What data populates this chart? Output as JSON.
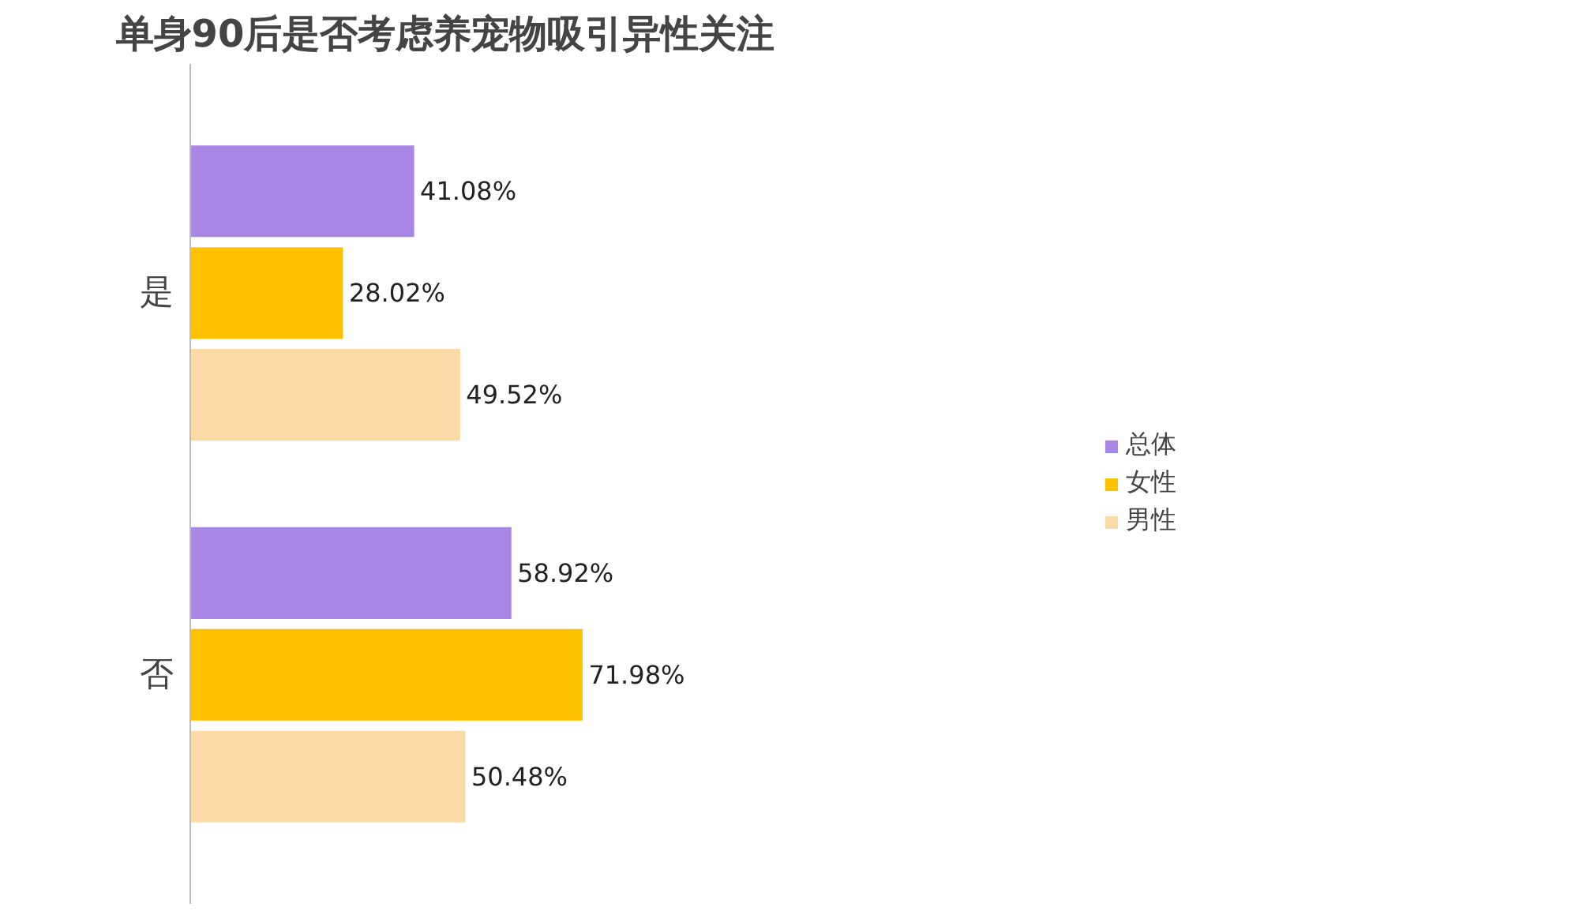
{
  "chart_data": {
    "type": "bar",
    "orientation": "horizontal",
    "title": "单身90后是否考虑养宠物吸引异性关注",
    "categories": [
      "是",
      "否"
    ],
    "series": [
      {
        "name": "总体",
        "color": "#a786e6",
        "values": [
          41.08,
          58.92
        ],
        "value_labels": [
          "41.08%",
          "58.92%"
        ]
      },
      {
        "name": "女性",
        "color": "#ffc000",
        "values": [
          28.02,
          71.98
        ],
        "value_labels": [
          "28.02%",
          "71.98%"
        ]
      },
      {
        "name": "男性",
        "color": "#fadba6",
        "values": [
          49.52,
          50.48
        ],
        "value_labels": [
          "49.52%",
          "50.48%"
        ]
      }
    ],
    "legend": "right",
    "grid": false
  }
}
